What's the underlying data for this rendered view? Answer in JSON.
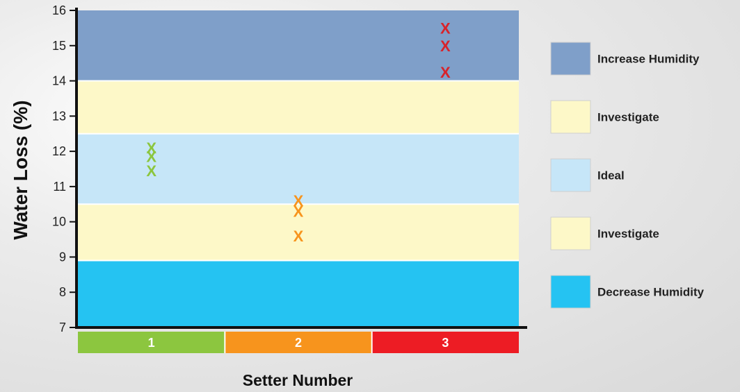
{
  "chart_data": {
    "type": "scatter",
    "xlabel": "Setter Number",
    "ylabel": "Water Loss (%)",
    "ylim": [
      7,
      16
    ],
    "yticks": [
      7,
      8,
      9,
      10,
      11,
      12,
      13,
      14,
      15,
      16
    ],
    "categories": [
      "1",
      "2",
      "3"
    ],
    "category_colors": [
      "#8cc63f",
      "#f7941d",
      "#ed1c24"
    ],
    "bands": [
      {
        "label": "Increase Humidity",
        "from": 14,
        "to": 16,
        "color": "#7f9fc9"
      },
      {
        "label": "Investigate",
        "from": 12.5,
        "to": 14,
        "color": "#fdf8c8"
      },
      {
        "label": "Ideal",
        "from": 10.5,
        "to": 12.5,
        "color": "#c6e6f8"
      },
      {
        "label": "Investigate",
        "from": 8.9,
        "to": 10.5,
        "color": "#fdf8c8"
      },
      {
        "label": "Decrease Humidity",
        "from": 7,
        "to": 8.9,
        "color": "#25c3f2"
      }
    ],
    "series": [
      {
        "category": "1",
        "marker": "X",
        "color": "#8cc63f",
        "values": [
          12.1,
          11.85,
          11.45
        ]
      },
      {
        "category": "2",
        "marker": "X",
        "color": "#f7941d",
        "values": [
          10.6,
          10.3,
          9.6
        ]
      },
      {
        "category": "3",
        "marker": "X",
        "color": "#d8232a",
        "values": [
          15.5,
          15.0,
          14.25
        ]
      }
    ],
    "grid": false,
    "legend": "right"
  }
}
